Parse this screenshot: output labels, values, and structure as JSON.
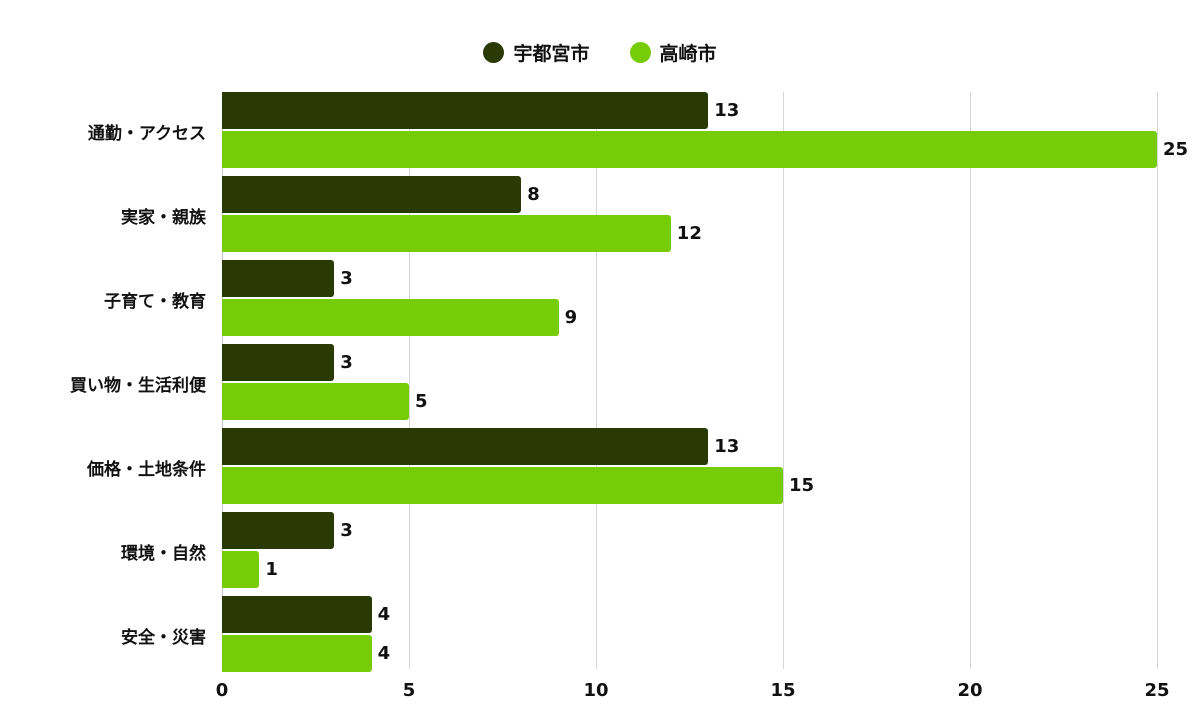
{
  "legend": {
    "items": [
      {
        "label": "宇都宮市",
        "color": "#2b3a05"
      },
      {
        "label": "高崎市",
        "color": "#76cc06"
      }
    ]
  },
  "axis": {
    "ticks": [
      "0",
      "5",
      "10",
      "15",
      "20",
      "25"
    ]
  },
  "chart_data": {
    "type": "bar",
    "orientation": "horizontal",
    "title": "",
    "xlabel": "",
    "ylabel": "",
    "xlim": [
      0,
      25
    ],
    "grid": true,
    "legend_position": "top",
    "categories": [
      "通勤・アクセス",
      "実家・親族",
      "子育て・教育",
      "買い物・生活利便",
      "価格・土地条件",
      "環境・自然",
      "安全・災害"
    ],
    "series": [
      {
        "name": "宇都宮市",
        "color": "#2b3a05",
        "values": [
          13,
          8,
          3,
          3,
          13,
          3,
          4
        ]
      },
      {
        "name": "高崎市",
        "color": "#76cc06",
        "values": [
          25,
          12,
          9,
          5,
          15,
          1,
          4
        ]
      }
    ]
  }
}
